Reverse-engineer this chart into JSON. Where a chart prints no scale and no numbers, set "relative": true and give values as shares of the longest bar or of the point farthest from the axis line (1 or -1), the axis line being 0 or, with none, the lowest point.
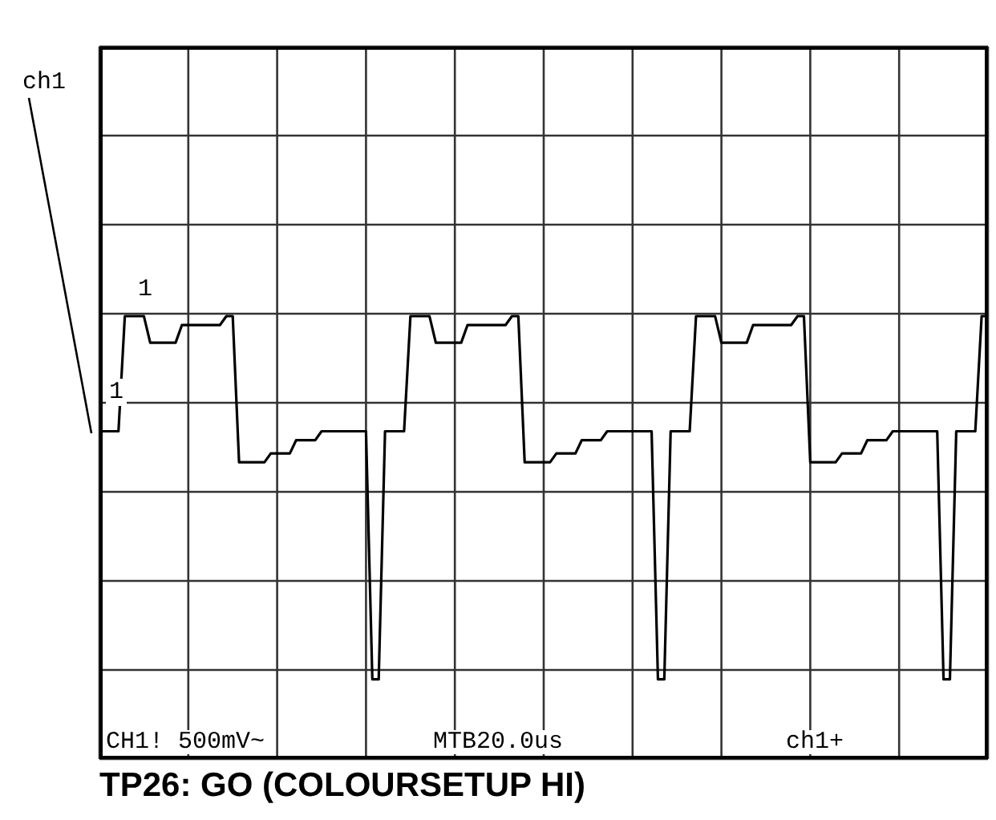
{
  "chart_data": {
    "type": "line",
    "title": "TP26: GO (COLOURSETUP HI)",
    "relative": true,
    "grid": true,
    "marker": "none",
    "line_style": "solid",
    "annotations": [
      "ch1",
      "1",
      "1",
      "CH1! 500mV~",
      "MTB20.0us",
      "ch1+"
    ],
    "categories": [
      null,
      null,
      null,
      null,
      null,
      null,
      null,
      null,
      null,
      null,
      null,
      null,
      null,
      null,
      null,
      null,
      null,
      null,
      null,
      null,
      null,
      null,
      null,
      null,
      null,
      null,
      null,
      null,
      null,
      null,
      null,
      null,
      null,
      null,
      null,
      null,
      null,
      null,
      null,
      null,
      null,
      null,
      null,
      null,
      null,
      null,
      null,
      null,
      null,
      null,
      null,
      null,
      null,
      null,
      null,
      null,
      null,
      null,
      null,
      null,
      null,
      null,
      null,
      null,
      null,
      null,
      null,
      null,
      null,
      null,
      null,
      null,
      null,
      null,
      null,
      null,
      null,
      null,
      null,
      null,
      null,
      null,
      null,
      null,
      null,
      null,
      null,
      null,
      null,
      null,
      null,
      null,
      null,
      null,
      null,
      null,
      null,
      null,
      null,
      null,
      null,
      null,
      null,
      null,
      null,
      null,
      null,
      null,
      null,
      null,
      null,
      null,
      null,
      null,
      null,
      null,
      null,
      null,
      null,
      null,
      null,
      null,
      null,
      null,
      null,
      null,
      null,
      null,
      null,
      null,
      null,
      null,
      null,
      null,
      null,
      null,
      null,
      null,
      null,
      null,
      null
    ],
    "series": [
      {
        "color": "#000000",
        "values": [
          0.74,
          0.74,
          0.74,
          0.74,
          1,
          1,
          1,
          1,
          0.94,
          0.94,
          0.94,
          0.94,
          0.94,
          0.98,
          0.98,
          0.98,
          0.98,
          0.98,
          0.98,
          0.98,
          1,
          1,
          0.67,
          0.67,
          0.67,
          0.67,
          0.67,
          0.69,
          0.69,
          0.69,
          0.69,
          0.72,
          0.72,
          0.72,
          0.72,
          0.74,
          0.74,
          0.74,
          0.74,
          0.74,
          0.74,
          0.74,
          0.74,
          0.18,
          0.18,
          0.74,
          0.74,
          0.74,
          0.74,
          1,
          1,
          1,
          1,
          0.94,
          0.94,
          0.94,
          0.94,
          0.94,
          0.98,
          0.98,
          0.98,
          0.98,
          0.98,
          0.98,
          0.98,
          1,
          1,
          0.67,
          0.67,
          0.67,
          0.67,
          0.67,
          0.69,
          0.69,
          0.69,
          0.69,
          0.72,
          0.72,
          0.72,
          0.72,
          0.74,
          0.74,
          0.74,
          0.74,
          0.74,
          0.74,
          0.74,
          0.74,
          0.18,
          0.18,
          0.74,
          0.74,
          0.74,
          0.74,
          1,
          1,
          1,
          1,
          0.94,
          0.94,
          0.94,
          0.94,
          0.94,
          0.98,
          0.98,
          0.98,
          0.98,
          0.98,
          0.98,
          0.98,
          1,
          1,
          0.67,
          0.67,
          0.67,
          0.67,
          0.67,
          0.69,
          0.69,
          0.69,
          0.69,
          0.72,
          0.72,
          0.72,
          0.72,
          0.74,
          0.74,
          0.74,
          0.74,
          0.74,
          0.74,
          0.74,
          0.74,
          0.18,
          0.18,
          0.74,
          0.74,
          0.74,
          0.74,
          1,
          1
        ]
      }
    ]
  }
}
